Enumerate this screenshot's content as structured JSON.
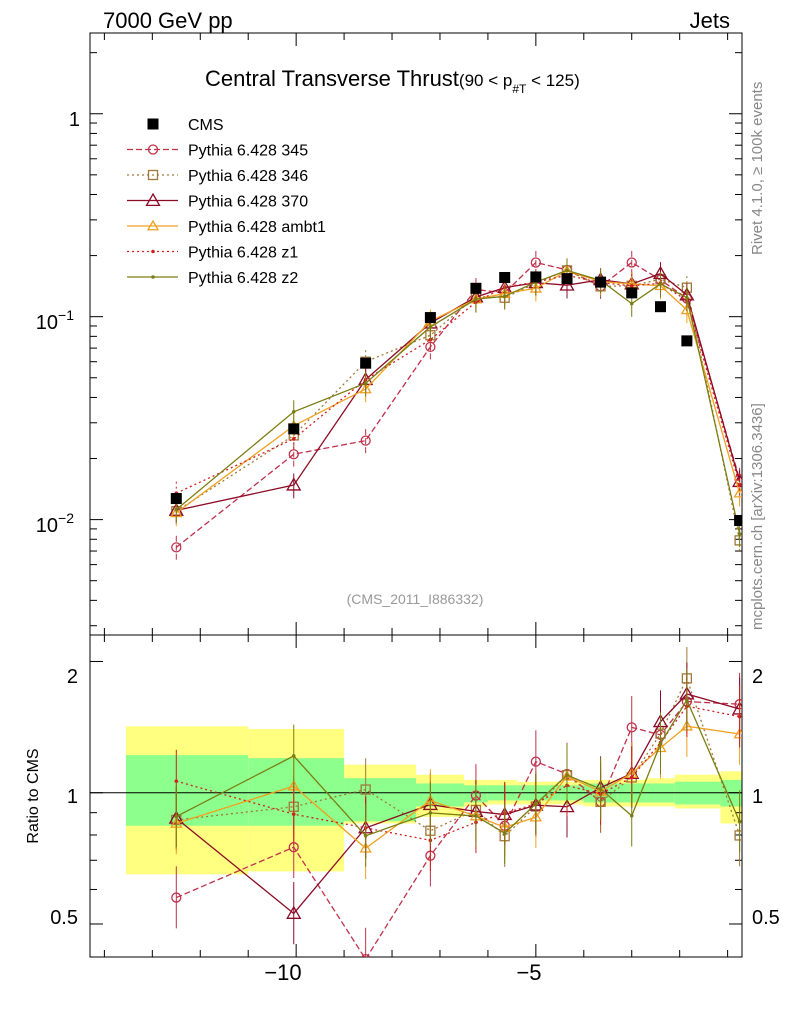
{
  "header": {
    "left": "7000 GeV pp",
    "right": "Jets"
  },
  "side_labels": {
    "rivet": "Rivet 4.1.0, ≥ 100k events",
    "mcplots": "mcplots.cern.ch [arXiv:1306.3436]"
  },
  "chart_data": {
    "type": "scatter",
    "title": "Central Transverse Thrust",
    "title_cut_pre": "(90 < p",
    "title_cut_sub": "#T",
    "title_cut_post": "  < 125)",
    "analysis_label": "(CMS_2011_I886332)",
    "xlabel": "",
    "ylabel_main": "",
    "ylabel_ratio": "Ratio to CMS",
    "xlim": [
      -14.3,
      -0.7
    ],
    "ylim_main": [
      0.0027,
      2.5
    ],
    "ylim_ratio": [
      0.42,
      2.3
    ],
    "x_ticks": [
      -10,
      -5
    ],
    "x_tick_labels": [
      "−10",
      "−5"
    ],
    "y_main_tick_labels": [
      "1",
      "10",
      "10"
    ],
    "y_main_tick_exps": [
      "",
      "−1",
      "−2"
    ],
    "y_ratio_tick_labels": [
      "2",
      "1",
      "0.5"
    ],
    "x": [
      -12.5,
      -10.05,
      -8.55,
      -7.2,
      -6.25,
      -5.65,
      -5.0,
      -4.35,
      -3.65,
      -3.0,
      -2.4,
      -1.85,
      -0.75
    ],
    "series": [
      {
        "name": "CMS",
        "color": "#000000",
        "style": "data",
        "values": [
          0.0127,
          0.028,
          0.059,
          0.099,
          0.138,
          0.156,
          0.157,
          0.154,
          0.148,
          0.131,
          0.112,
          0.076,
          0.0099
        ]
      },
      {
        "name": "Pythia 6.428 345",
        "color": "#c0304a",
        "style": "dashed",
        "marker": "circle",
        "values": [
          0.0073,
          0.021,
          0.0245,
          0.071,
          0.136,
          0.131,
          0.185,
          0.17,
          0.141,
          0.185,
          0.152,
          0.123,
          0.0158
        ]
      },
      {
        "name": "Pythia 6.428 346",
        "color": "#a07838",
        "style": "dotted",
        "marker": "square",
        "values": [
          0.011,
          0.026,
          0.06,
          0.081,
          0.126,
          0.124,
          0.146,
          0.169,
          0.141,
          0.142,
          0.153,
          0.139,
          0.0079
        ]
      },
      {
        "name": "Pythia 6.428 370",
        "color": "#8b0a26",
        "style": "solid",
        "marker": "triangle",
        "values": [
          0.0111,
          0.0148,
          0.049,
          0.093,
          0.125,
          0.139,
          0.147,
          0.143,
          0.152,
          0.145,
          0.163,
          0.128,
          0.0154
        ]
      },
      {
        "name": "Pythia 6.428 ambt1",
        "color": "#f0a020",
        "style": "solid",
        "marker": "triangle",
        "values": [
          0.0108,
          0.029,
          0.044,
          0.095,
          0.122,
          0.13,
          0.138,
          0.168,
          0.149,
          0.145,
          0.142,
          0.108,
          0.0135
        ]
      },
      {
        "name": "Pythia 6.428 z1",
        "color": "#d02020",
        "style": "dotted",
        "marker": "dot",
        "values": [
          0.0135,
          0.025,
          0.049,
          0.077,
          0.118,
          0.14,
          0.148,
          0.16,
          0.147,
          0.142,
          0.146,
          0.12,
          0.0148
        ]
      },
      {
        "name": "Pythia 6.428 z2",
        "color": "#7b7d12",
        "style": "solid",
        "marker": "dot",
        "values": [
          0.0112,
          0.034,
          0.047,
          0.089,
          0.122,
          0.126,
          0.148,
          0.169,
          0.151,
          0.116,
          0.145,
          0.124,
          0.0085
        ]
      }
    ],
    "ratio_bands": {
      "edges": [
        -13.55,
        -11.0,
        -9.0,
        -7.5,
        -6.5,
        -6.0,
        -5.4,
        -4.6,
        -4.0,
        -3.3,
        -2.7,
        -2.1,
        -1.15,
        -0.5
      ],
      "green_low": [
        0.84,
        0.84,
        0.86,
        0.93,
        0.95,
        0.96,
        0.96,
        0.96,
        0.95,
        0.95,
        0.95,
        0.94,
        0.93
      ],
      "green_high": [
        1.22,
        1.2,
        1.08,
        1.05,
        1.04,
        1.04,
        1.04,
        1.04,
        1.05,
        1.05,
        1.05,
        1.06,
        1.07
      ],
      "yellow_low": [
        0.65,
        0.66,
        0.85,
        0.88,
        0.93,
        0.94,
        0.94,
        0.94,
        0.93,
        0.93,
        0.93,
        0.92,
        0.85
      ],
      "yellow_high": [
        1.42,
        1.4,
        1.16,
        1.1,
        1.07,
        1.07,
        1.06,
        1.06,
        1.07,
        1.07,
        1.08,
        1.1,
        1.12
      ]
    }
  }
}
